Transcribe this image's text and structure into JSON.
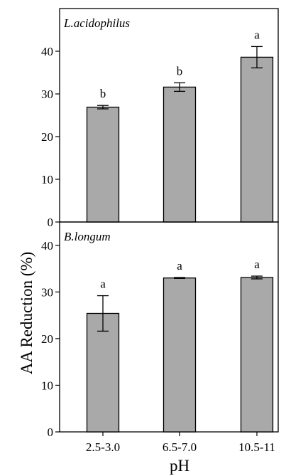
{
  "chart_data": {
    "type": "bar",
    "ylabel": "AA Reduction (%)",
    "xlabel": "pH",
    "categories": [
      "2.5-3.0",
      "6.5-7.0",
      "10.5-11"
    ],
    "panels": [
      {
        "title": "L.acidophilus",
        "ylim": [
          0,
          50
        ],
        "yticks": [
          0,
          10,
          20,
          30,
          40
        ],
        "values": [
          26.9,
          31.6,
          38.6
        ],
        "errors": [
          0.4,
          1.0,
          2.5
        ],
        "letters": [
          "b",
          "b",
          "a"
        ]
      },
      {
        "title": "B.longum",
        "ylim": [
          0,
          45
        ],
        "yticks": [
          0,
          10,
          20,
          30,
          40
        ],
        "values": [
          25.4,
          33.0,
          33.1
        ],
        "errors": [
          3.8,
          0.1,
          0.3
        ],
        "letters": [
          "a",
          "a",
          "a"
        ]
      }
    ]
  }
}
